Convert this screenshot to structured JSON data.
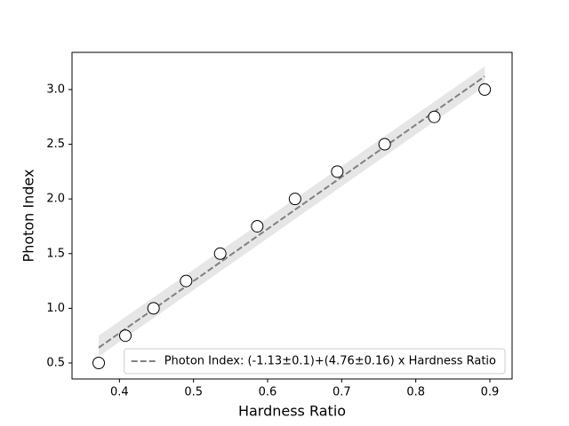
{
  "chart_data": {
    "type": "scatter",
    "x_label": "Hardness Ratio",
    "y_label": "Photon Index",
    "x": [
      0.372,
      0.408,
      0.446,
      0.49,
      0.536,
      0.586,
      0.637,
      0.694,
      0.758,
      0.825,
      0.893
    ],
    "values": [
      0.5,
      0.75,
      1.0,
      1.25,
      1.5,
      1.75,
      2.0,
      2.25,
      2.5,
      2.75,
      3.0
    ],
    "marker_edge_color": "#000000",
    "marker_fill": "#ffffff",
    "fit": {
      "name": "Photon Index: (-1.13±0.1)+(4.76±0.16) x Hardness Ratio",
      "color": "#808080",
      "x": [
        0.372,
        0.893
      ],
      "values": [
        0.64,
        3.12
      ]
    },
    "band": {
      "color": "#e6e6e6",
      "x": [
        0.372,
        0.893
      ],
      "lower": [
        0.56,
        3.03
      ],
      "upper": [
        0.75,
        3.21
      ]
    },
    "xlim": [
      0.336,
      0.93
    ],
    "ylim": [
      0.354,
      3.34
    ],
    "xticks": [
      0.4,
      0.5,
      0.6,
      0.7,
      0.8,
      0.9
    ],
    "yticks": [
      0.5,
      {
        "value": 1,
        "label": "1.0"
      },
      1.5,
      {
        "value": 2,
        "label": "2.0"
      },
      2.5,
      {
        "value": 3,
        "label": "3.0"
      }
    ],
    "legend": "lower right"
  }
}
